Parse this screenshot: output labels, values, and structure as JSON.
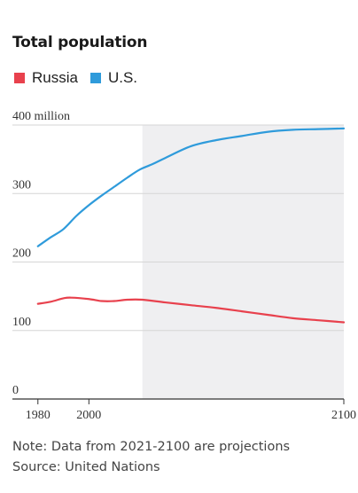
{
  "chart_data": {
    "type": "line",
    "title": "Total population",
    "y_unit_label": "400 million",
    "ylim": [
      0,
      400
    ],
    "xlim": [
      1970,
      2100
    ],
    "grid": true,
    "legend_position": "top-left",
    "y_ticks": [
      {
        "value": 400,
        "label": "400 million"
      },
      {
        "value": 300,
        "label": "300"
      },
      {
        "value": 200,
        "label": "200"
      },
      {
        "value": 100,
        "label": "100"
      },
      {
        "value": 0,
        "label": "0"
      }
    ],
    "x_ticks": [
      {
        "value": 1980,
        "label": "1980"
      },
      {
        "value": 2000,
        "label": "2000"
      },
      {
        "value": 2100,
        "label": "2100"
      }
    ],
    "projection_start": 2021,
    "series": [
      {
        "name": "Russia",
        "color": "#e8414d",
        "x": [
          1980,
          1985,
          1990,
          1993,
          2000,
          2005,
          2010,
          2015,
          2021,
          2030,
          2040,
          2050,
          2060,
          2070,
          2080,
          2090,
          2100
        ],
        "values": [
          139,
          142,
          147,
          148,
          146,
          143,
          143,
          145,
          145,
          141,
          137,
          133,
          128,
          123,
          118,
          115,
          112
        ]
      },
      {
        "name": "U.S.",
        "color": "#2f9bdb",
        "x": [
          1980,
          1985,
          1990,
          1995,
          2000,
          2005,
          2010,
          2015,
          2020,
          2025,
          2030,
          2040,
          2050,
          2060,
          2070,
          2080,
          2090,
          2100
        ],
        "values": [
          223,
          236,
          248,
          267,
          283,
          297,
          310,
          323,
          335,
          343,
          352,
          369,
          378,
          384,
          390,
          393,
          394,
          395
        ]
      }
    ]
  },
  "notes": {
    "note": "Note: Data from 2021-2100 are projections",
    "source": "Source: United Nations"
  }
}
